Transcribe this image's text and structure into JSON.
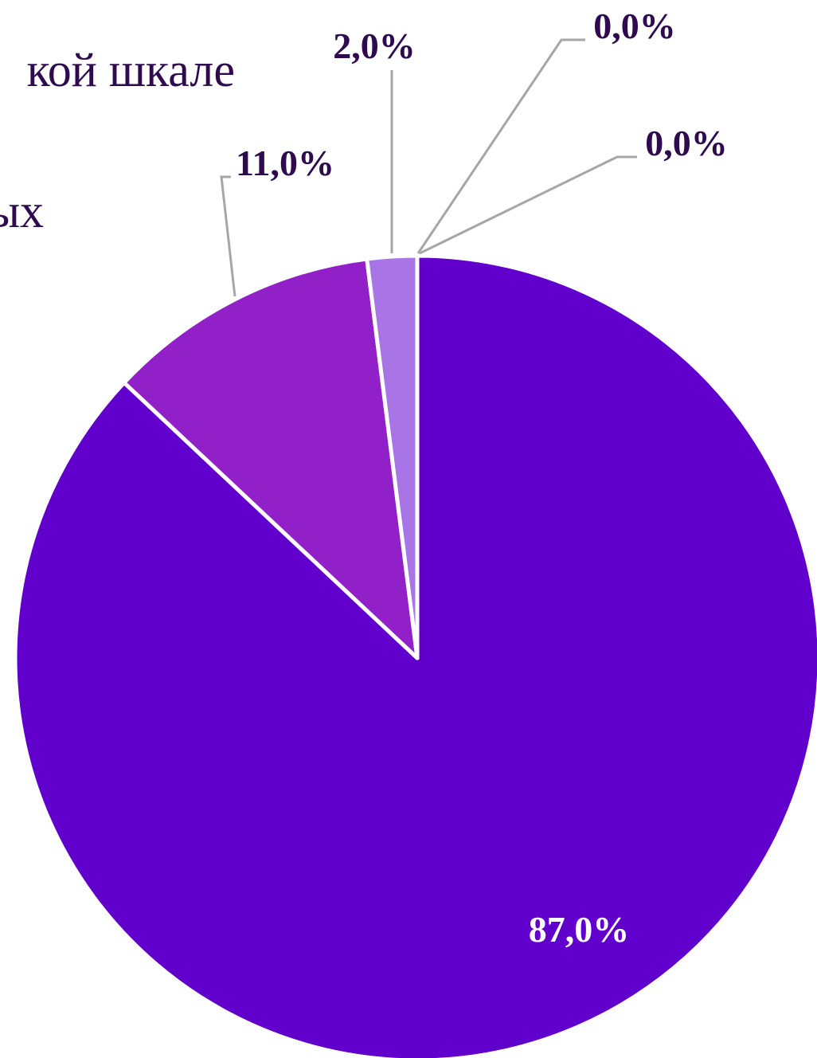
{
  "chart_data": {
    "type": "pie",
    "title_lines": [
      "кой шкале",
      "ых"
    ],
    "categories": [
      null,
      null,
      null,
      null,
      null
    ],
    "values": [
      87,
      11,
      2,
      0,
      0
    ],
    "value_labels": [
      "87,0%",
      "11,0%",
      "2,0%",
      "0,0%",
      "0,0%"
    ],
    "colors": [
      "#6100cc",
      "#9120c8",
      "#a974e6",
      "#c9a6f0",
      "#dcc4f5"
    ]
  }
}
